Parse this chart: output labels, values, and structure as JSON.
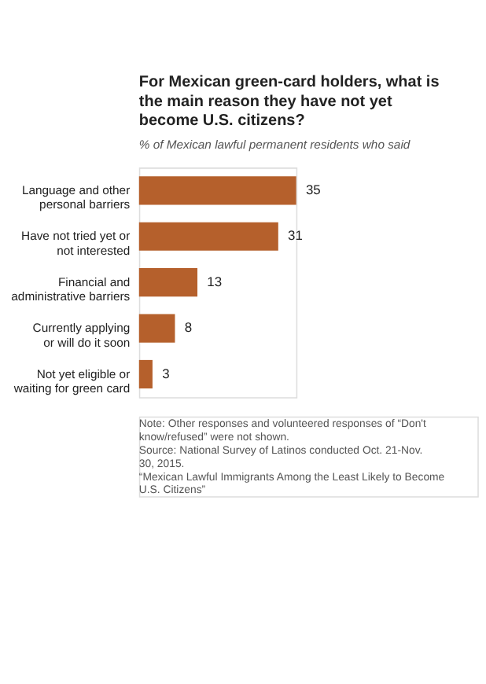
{
  "chart_data": {
    "type": "bar",
    "orientation": "horizontal",
    "data_labels": true,
    "title": "For Mexican green-card holders, what is the main reason they have not yet become U.S. citizens?",
    "subtitle": "% of Mexican lawful permanent residents who said",
    "categories": [
      "Language and other\npersonal barriers",
      "Have not tried yet or\nnot interested",
      "Financial and\nadministrative barriers",
      "Currently applying\nor will do it soon",
      "Not yet eligible or\nwaiting for green card"
    ],
    "values": [
      35,
      31,
      13,
      8,
      3
    ],
    "color": "#b5602c",
    "annotations": [
      "Note: Other responses and volunteered responses of “Don't know/refused” were not shown.",
      "Source: National Survey of Latinos conducted Oct. 21-Nov. 30, 2015.",
      "“Mexican Lawful Immigrants Among the Least Likely to Become U.S. Citizens”"
    ]
  }
}
